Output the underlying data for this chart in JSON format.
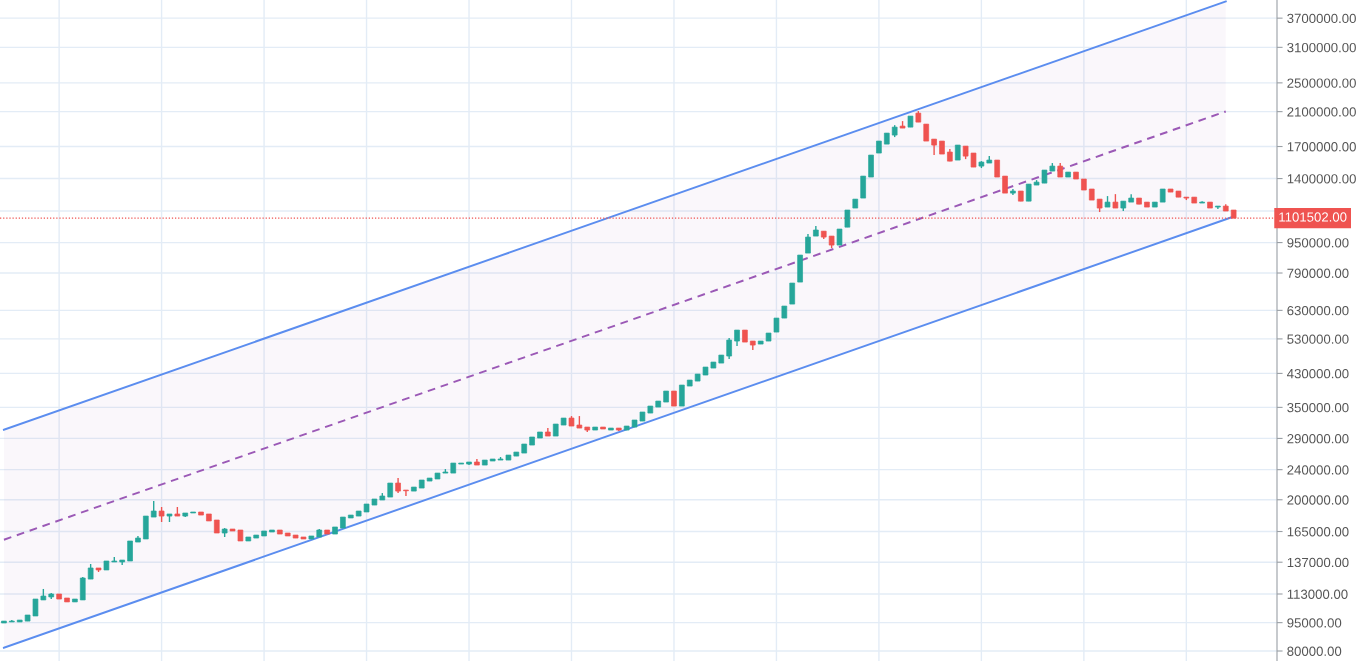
{
  "chart_data": {
    "type": "candlestick",
    "categories": [
      null,
      null,
      null,
      null,
      null,
      null,
      null,
      null,
      null,
      null,
      null,
      null,
      null,
      null,
      null,
      null,
      null,
      null,
      null,
      null,
      null,
      null,
      null,
      null,
      null,
      null,
      null,
      null,
      null,
      null,
      null,
      null,
      null,
      null,
      null,
      null,
      null,
      null,
      null,
      null,
      null,
      null,
      null,
      null,
      null,
      null,
      null,
      null,
      null,
      null,
      null,
      null,
      null,
      null,
      null,
      null,
      null,
      null,
      null,
      null,
      null,
      null,
      null,
      null,
      null,
      null,
      null,
      null,
      null,
      null,
      null,
      null,
      null,
      null,
      null,
      null,
      null,
      null,
      null,
      null,
      null,
      null,
      null,
      null,
      null,
      null,
      null,
      null,
      null,
      null,
      null,
      null,
      null,
      null,
      null,
      null,
      null,
      null,
      null,
      null,
      null,
      null,
      null,
      null,
      null,
      null,
      null,
      null,
      null,
      null,
      null,
      null,
      null,
      null,
      null,
      null,
      null,
      null,
      null,
      null,
      null,
      null,
      null,
      null,
      null,
      null,
      null,
      null,
      null,
      null,
      null,
      null,
      null,
      null,
      null,
      null,
      null,
      null,
      null,
      null,
      null,
      null,
      null,
      null,
      null,
      null,
      null,
      null,
      null,
      null,
      null,
      null,
      null,
      null,
      null,
      null,
      null
    ],
    "ohlc": [
      [
        94800,
        95900,
        94800,
        95900
      ],
      [
        95400,
        96500,
        95400,
        95900
      ],
      [
        95400,
        96500,
        95400,
        96500
      ],
      [
        95900,
        99500,
        95900,
        99500
      ],
      [
        98900,
        109600,
        98900,
        109600
      ],
      [
        109000,
        116500,
        109000,
        111600
      ],
      [
        111000,
        113700,
        109600,
        113000
      ],
      [
        113000,
        113000,
        109600,
        109600
      ],
      [
        110300,
        110300,
        107700,
        107700
      ],
      [
        107700,
        109600,
        107700,
        109600
      ],
      [
        109000,
        125300,
        109000,
        124500
      ],
      [
        123700,
        135500,
        123700,
        132300
      ],
      [
        132300,
        132300,
        129100,
        130700
      ],
      [
        130700,
        138000,
        130700,
        138000
      ],
      [
        137200,
        141400,
        137200,
        138000
      ],
      [
        137200,
        138800,
        134700,
        138800
      ],
      [
        138000,
        155800,
        138000,
        155800
      ],
      [
        154800,
        160600,
        154800,
        158600
      ],
      [
        157700,
        181200,
        157700,
        181200
      ],
      [
        180100,
        198400,
        180100,
        186800
      ],
      [
        186800,
        191400,
        174800,
        181200
      ],
      [
        181200,
        183500,
        174800,
        183500
      ],
      [
        183500,
        191400,
        181200,
        181200
      ],
      [
        181200,
        184600,
        180100,
        184600
      ],
      [
        184600,
        185700,
        184600,
        185700
      ],
      [
        185700,
        185700,
        182300,
        182300
      ],
      [
        183500,
        183500,
        175900,
        175900
      ],
      [
        176900,
        176900,
        163500,
        163500
      ],
      [
        163500,
        168500,
        159600,
        167500
      ],
      [
        167500,
        167500,
        165500,
        165500
      ],
      [
        166500,
        166500,
        155800,
        155800
      ],
      [
        155800,
        159600,
        155800,
        159600
      ],
      [
        158600,
        161500,
        158600,
        161500
      ],
      [
        160600,
        165500,
        160600,
        165500
      ],
      [
        164500,
        166500,
        164500,
        166500
      ],
      [
        166500,
        166500,
        162500,
        162500
      ],
      [
        163500,
        163500,
        160600,
        160600
      ],
      [
        161500,
        161500,
        158600,
        158600
      ],
      [
        159600,
        159600,
        157700,
        157700
      ],
      [
        157700,
        160600,
        157700,
        160600
      ],
      [
        159600,
        167500,
        159600,
        166500
      ],
      [
        166500,
        166500,
        162500,
        162500
      ],
      [
        162500,
        169600,
        162500,
        169600
      ],
      [
        168500,
        180100,
        168500,
        180100
      ],
      [
        179100,
        182300,
        179100,
        182300
      ],
      [
        181200,
        186800,
        181200,
        186800
      ],
      [
        185700,
        194900,
        185700,
        194900
      ],
      [
        193700,
        200900,
        193700,
        200900
      ],
      [
        199700,
        208300,
        199700,
        204600
      ],
      [
        203300,
        221300,
        203300,
        221300
      ],
      [
        221300,
        228100,
        208300,
        210800
      ],
      [
        212100,
        212100,
        204600,
        211200
      ],
      [
        210800,
        216000,
        210800,
        216000
      ],
      [
        214700,
        225400,
        214700,
        225400
      ],
      [
        224000,
        228100,
        224000,
        228100
      ],
      [
        226800,
        235100,
        226800,
        235100
      ],
      [
        235100,
        240900,
        235100,
        236600
      ],
      [
        235100,
        249800,
        235100,
        249800
      ],
      [
        248300,
        249800,
        248300,
        249800
      ],
      [
        248300,
        251400,
        246800,
        251400
      ],
      [
        251400,
        256000,
        246800,
        246800
      ],
      [
        246800,
        254400,
        246800,
        254400
      ],
      [
        252900,
        256000,
        252900,
        256000
      ],
      [
        254400,
        259100,
        254400,
        256000
      ],
      [
        254400,
        262200,
        254400,
        262200
      ],
      [
        260600,
        267000,
        260600,
        267000
      ],
      [
        265400,
        280300,
        265400,
        280300
      ],
      [
        278600,
        292500,
        278600,
        292500
      ],
      [
        290700,
        301500,
        290700,
        301500
      ],
      [
        301500,
        308800,
        294200,
        294200
      ],
      [
        294200,
        316400,
        294200,
        316400
      ],
      [
        314500,
        328100,
        314500,
        328100
      ],
      [
        328100,
        332100,
        312600,
        312600
      ],
      [
        314500,
        332100,
        308800,
        308800
      ],
      [
        310700,
        310700,
        301500,
        305100
      ],
      [
        305100,
        310700,
        305100,
        310700
      ],
      [
        310700,
        310700,
        307000,
        307000
      ],
      [
        305100,
        308800,
        305100,
        308800
      ],
      [
        308800,
        308800,
        303300,
        305100
      ],
      [
        305100,
        312600,
        305100,
        312600
      ],
      [
        310700,
        324200,
        310700,
        324200
      ],
      [
        322200,
        340300,
        322200,
        340300
      ],
      [
        338200,
        352800,
        338200,
        352800
      ],
      [
        350700,
        363700,
        350700,
        363700
      ],
      [
        361500,
        386400,
        361500,
        386400
      ],
      [
        386400,
        386400,
        352800,
        352800
      ],
      [
        352800,
        400700,
        352800,
        400700
      ],
      [
        398300,
        413000,
        398300,
        413000
      ],
      [
        410500,
        428300,
        410500,
        428300
      ],
      [
        425800,
        446900,
        425800,
        446900
      ],
      [
        444200,
        460600,
        444200,
        460600
      ],
      [
        457800,
        480500,
        457800,
        480500
      ],
      [
        477700,
        532700,
        469100,
        526300
      ],
      [
        523100,
        559100,
        507500,
        559100
      ],
      [
        559100,
        559100,
        519900,
        519900
      ],
      [
        523100,
        523100,
        495300,
        510600
      ],
      [
        513700,
        523100,
        513700,
        523100
      ],
      [
        523100,
        549100,
        523100,
        549100
      ],
      [
        552400,
        601300,
        552400,
        601300
      ],
      [
        601300,
        646600,
        601300,
        646600
      ],
      [
        654500,
        743300,
        654500,
        743300
      ],
      [
        747800,
        880700,
        747800,
        880700
      ],
      [
        891400,
        1000000,
        891400,
        982100
      ],
      [
        988100,
        1050000,
        988100,
        1025000
      ],
      [
        1018000,
        1018000,
        970300,
        982100
      ],
      [
        988100,
        988100,
        918800,
        935700
      ],
      [
        935700,
        1031000,
        935700,
        1031000
      ],
      [
        1043000,
        1157000,
        1043000,
        1157000
      ],
      [
        1171000,
        1236000,
        1171000,
        1236000
      ],
      [
        1244000,
        1421000,
        1244000,
        1421000
      ],
      [
        1413000,
        1614000,
        1413000,
        1614000
      ],
      [
        1634000,
        1757000,
        1634000,
        1757000
      ],
      [
        1725000,
        1844000,
        1725000,
        1844000
      ],
      [
        1822000,
        1935000,
        1800000,
        1912000
      ],
      [
        1924000,
        1983000,
        1901000,
        1901000
      ],
      [
        1912000,
        2044000,
        1912000,
        2044000
      ],
      [
        2081000,
        2107000,
        1971000,
        1971000
      ],
      [
        1947000,
        1947000,
        1757000,
        1757000
      ],
      [
        1778000,
        1778000,
        1614000,
        1715000
      ],
      [
        1757000,
        1757000,
        1624000,
        1624000
      ],
      [
        1644000,
        1674000,
        1556000,
        1556000
      ],
      [
        1566000,
        1715000,
        1566000,
        1715000
      ],
      [
        1704000,
        1704000,
        1575000,
        1604000
      ],
      [
        1634000,
        1634000,
        1501000,
        1501000
      ],
      [
        1510000,
        1556000,
        1492000,
        1547000
      ],
      [
        1538000,
        1604000,
        1538000,
        1566000
      ],
      [
        1566000,
        1566000,
        1413000,
        1413000
      ],
      [
        1421000,
        1421000,
        1282000,
        1282000
      ],
      [
        1282000,
        1314000,
        1267000,
        1298000
      ],
      [
        1298000,
        1298000,
        1221000,
        1221000
      ],
      [
        1221000,
        1354000,
        1221000,
        1354000
      ],
      [
        1346000,
        1387000,
        1346000,
        1370000
      ],
      [
        1362000,
        1474000,
        1362000,
        1474000
      ],
      [
        1465000,
        1538000,
        1465000,
        1510000
      ],
      [
        1510000,
        1538000,
        1413000,
        1413000
      ],
      [
        1413000,
        1456000,
        1413000,
        1456000
      ],
      [
        1456000,
        1456000,
        1396000,
        1396000
      ],
      [
        1396000,
        1396000,
        1306000,
        1306000
      ],
      [
        1314000,
        1314000,
        1229000,
        1229000
      ],
      [
        1236000,
        1236000,
        1143000,
        1171000
      ],
      [
        1178000,
        1259000,
        1178000,
        1214000
      ],
      [
        1214000,
        1274000,
        1171000,
        1171000
      ],
      [
        1171000,
        1221000,
        1150000,
        1221000
      ],
      [
        1214000,
        1274000,
        1214000,
        1244000
      ],
      [
        1244000,
        1244000,
        1199000,
        1199000
      ],
      [
        1214000,
        1214000,
        1178000,
        1178000
      ],
      [
        1178000,
        1214000,
        1178000,
        1214000
      ],
      [
        1214000,
        1314000,
        1214000,
        1314000
      ],
      [
        1314000,
        1314000,
        1290000,
        1290000
      ],
      [
        1298000,
        1298000,
        1251000,
        1251000
      ],
      [
        1251000,
        1251000,
        1229000,
        1244000
      ],
      [
        1251000,
        1251000,
        1207000,
        1207000
      ],
      [
        1207000,
        1221000,
        1207000,
        1214000
      ],
      [
        1214000,
        1214000,
        1171000,
        1171000
      ],
      [
        1178000,
        1185000,
        1164000,
        1185000
      ],
      [
        1185000,
        1199000,
        1150000,
        1150000
      ],
      [
        1157000,
        1157000,
        1101502,
        1101502
      ]
    ],
    "colors": [
      "#26a69a",
      "#26a69a",
      "#26a69a",
      "#26a69a",
      "#26a69a",
      "#26a69a",
      "#26a69a",
      "#ef5350",
      "#ef5350",
      "#26a69a",
      "#26a69a",
      "#26a69a",
      "#ef5350",
      "#26a69a",
      "#26a69a",
      "#26a69a",
      "#26a69a",
      "#26a69a",
      "#26a69a",
      "#26a69a",
      "#ef5350",
      "#26a69a",
      "#ef5350",
      "#26a69a",
      "#26a69a",
      "#ef5350",
      "#ef5350",
      "#ef5350",
      "#26a69a",
      "#ef5350",
      "#ef5350",
      "#26a69a",
      "#26a69a",
      "#26a69a",
      "#26a69a",
      "#ef5350",
      "#ef5350",
      "#ef5350",
      "#ef5350",
      "#26a69a",
      "#26a69a",
      "#ef5350",
      "#26a69a",
      "#26a69a",
      "#26a69a",
      "#26a69a",
      "#26a69a",
      "#26a69a",
      "#26a69a",
      "#26a69a",
      "#ef5350",
      "#ef5350",
      "#26a69a",
      "#26a69a",
      "#26a69a",
      "#26a69a",
      "#26a69a",
      "#26a69a",
      "#26a69a",
      "#26a69a",
      "#ef5350",
      "#26a69a",
      "#26a69a",
      "#26a69a",
      "#26a69a",
      "#26a69a",
      "#26a69a",
      "#26a69a",
      "#26a69a",
      "#ef5350",
      "#26a69a",
      "#26a69a",
      "#ef5350",
      "#ef5350",
      "#ef5350",
      "#26a69a",
      "#ef5350",
      "#26a69a",
      "#ef5350",
      "#26a69a",
      "#26a69a",
      "#26a69a",
      "#26a69a",
      "#26a69a",
      "#26a69a",
      "#ef5350",
      "#26a69a",
      "#26a69a",
      "#26a69a",
      "#26a69a",
      "#26a69a",
      "#26a69a",
      "#26a69a",
      "#26a69a",
      "#ef5350",
      "#ef5350",
      "#26a69a",
      "#26a69a",
      "#26a69a",
      "#26a69a",
      "#26a69a",
      "#26a69a",
      "#26a69a",
      "#26a69a",
      "#ef5350",
      "#ef5350",
      "#26a69a",
      "#26a69a",
      "#26a69a",
      "#26a69a",
      "#26a69a",
      "#26a69a",
      "#26a69a",
      "#26a69a",
      "#ef5350",
      "#26a69a",
      "#ef5350",
      "#ef5350",
      "#ef5350",
      "#ef5350",
      "#ef5350",
      "#26a69a",
      "#ef5350",
      "#ef5350",
      "#26a69a",
      "#26a69a",
      "#ef5350",
      "#ef5350",
      "#26a69a",
      "#ef5350",
      "#26a69a",
      "#26a69a",
      "#26a69a",
      "#26a69a",
      "#ef5350",
      "#26a69a",
      "#ef5350",
      "#ef5350",
      "#ef5350",
      "#ef5350",
      "#26a69a",
      "#ef5350",
      "#26a69a",
      "#26a69a",
      "#ef5350",
      "#ef5350",
      "#26a69a",
      "#26a69a",
      "#ef5350",
      "#ef5350",
      "#ef5350",
      "#ef5350",
      "#26a69a",
      "#ef5350",
      "#26a69a",
      "#ef5350",
      "#ef5350"
    ],
    "series": [
      {
        "type": "line",
        "values": [
          305600,
          null,
          null,
          null,
          null,
          null,
          null,
          null,
          null,
          null,
          null,
          null,
          null,
          null,
          null,
          null,
          null,
          null,
          null,
          null,
          null,
          null,
          null,
          null,
          null,
          null,
          null,
          null,
          null,
          null,
          null,
          null,
          null,
          null,
          null,
          null,
          null,
          null,
          null,
          null,
          null,
          null,
          null,
          null,
          null,
          null,
          null,
          null,
          null,
          null,
          null,
          null,
          null,
          null,
          null,
          null,
          null,
          null,
          null,
          null,
          null,
          null,
          null,
          null,
          null,
          null,
          null,
          null,
          null,
          null,
          null,
          null,
          null,
          null,
          null,
          null,
          null,
          null,
          null,
          null,
          null,
          null,
          null,
          null,
          null,
          null,
          null,
          null,
          null,
          null,
          null,
          null,
          null,
          null,
          null,
          null,
          null,
          null,
          null,
          null,
          null,
          null,
          null,
          null,
          null,
          null,
          null,
          null,
          null,
          null,
          null,
          null,
          null,
          null,
          null,
          null,
          null,
          null,
          null,
          null,
          null,
          null,
          null,
          null,
          null,
          null,
          null,
          null,
          null,
          null,
          null,
          null,
          null,
          null,
          null,
          null,
          null,
          null,
          null,
          null,
          null,
          null,
          null,
          null,
          null,
          null,
          null,
          null,
          null,
          null,
          null,
          null,
          null,
          null,
          null,
          4094000,
          null
        ],
        "color": "#5b8def",
        "line_style": "solid"
      },
      {
        "type": "line",
        "values": [
          157000,
          null,
          null,
          null,
          null,
          null,
          null,
          null,
          null,
          null,
          null,
          null,
          null,
          null,
          null,
          null,
          null,
          null,
          null,
          null,
          null,
          null,
          null,
          null,
          null,
          null,
          null,
          null,
          null,
          null,
          null,
          null,
          null,
          null,
          null,
          null,
          null,
          null,
          null,
          null,
          null,
          null,
          null,
          null,
          null,
          null,
          null,
          null,
          null,
          null,
          null,
          null,
          null,
          null,
          null,
          null,
          null,
          null,
          null,
          null,
          null,
          null,
          null,
          null,
          null,
          null,
          null,
          null,
          null,
          null,
          null,
          null,
          null,
          null,
          null,
          null,
          null,
          null,
          null,
          null,
          null,
          null,
          null,
          null,
          null,
          null,
          null,
          null,
          null,
          null,
          null,
          null,
          null,
          null,
          null,
          null,
          null,
          null,
          null,
          null,
          null,
          null,
          null,
          null,
          null,
          null,
          null,
          null,
          null,
          null,
          null,
          null,
          null,
          null,
          null,
          null,
          null,
          null,
          null,
          null,
          null,
          null,
          null,
          null,
          null,
          null,
          null,
          null,
          null,
          null,
          null,
          null,
          null,
          null,
          null,
          null,
          null,
          null,
          null,
          null,
          null,
          null,
          null,
          null,
          null,
          null,
          null,
          null,
          null,
          null,
          null,
          null,
          null,
          null,
          null,
          2102000,
          null
        ],
        "lower": [
          81600,
          null,
          null,
          null,
          null,
          null,
          null,
          null,
          null,
          null,
          null,
          null,
          null,
          null,
          null,
          null,
          null,
          null,
          null,
          null,
          null,
          null,
          null,
          null,
          null,
          null,
          null,
          null,
          null,
          null,
          null,
          null,
          null,
          null,
          null,
          null,
          null,
          null,
          null,
          null,
          null,
          null,
          null,
          null,
          null,
          null,
          null,
          null,
          null,
          null,
          null,
          null,
          null,
          null,
          null,
          null,
          null,
          null,
          null,
          null,
          null,
          null,
          null,
          null,
          null,
          null,
          null,
          null,
          null,
          null,
          null,
          null,
          null,
          null,
          null,
          null,
          null,
          null,
          null,
          null,
          null,
          null,
          null,
          null,
          null,
          null,
          null,
          null,
          null,
          null,
          null,
          null,
          null,
          null,
          null,
          null,
          null,
          null,
          null,
          null,
          null,
          null,
          null,
          null,
          null,
          null,
          null,
          null,
          null,
          null,
          null,
          null,
          null,
          null,
          null,
          null,
          null,
          null,
          null,
          null,
          null,
          null,
          null,
          null,
          null,
          null,
          null,
          null,
          null,
          null,
          null,
          null,
          null,
          null,
          null,
          null,
          null,
          null,
          null,
          null,
          null,
          null,
          null,
          null,
          null,
          null,
          null,
          null,
          null,
          null,
          null,
          null,
          null,
          null,
          null,
          1093000,
          null
        ],
        "upper": [
          305600,
          null,
          null,
          null,
          null,
          null,
          null,
          null,
          null,
          null,
          null,
          null,
          null,
          null,
          null,
          null,
          null,
          null,
          null,
          null,
          null,
          null,
          null,
          null,
          null,
          null,
          null,
          null,
          null,
          null,
          null,
          null,
          null,
          null,
          null,
          null,
          null,
          null,
          null,
          null,
          null,
          null,
          null,
          null,
          null,
          null,
          null,
          null,
          null,
          null,
          null,
          null,
          null,
          null,
          null,
          null,
          null,
          null,
          null,
          null,
          null,
          null,
          null,
          null,
          null,
          null,
          null,
          null,
          null,
          null,
          null,
          null,
          null,
          null,
          null,
          null,
          null,
          null,
          null,
          null,
          null,
          null,
          null,
          null,
          null,
          null,
          null,
          null,
          null,
          null,
          null,
          null,
          null,
          null,
          null,
          null,
          null,
          null,
          null,
          null,
          null,
          null,
          null,
          null,
          null,
          null,
          null,
          null,
          null,
          null,
          null,
          null,
          null,
          null,
          null,
          null,
          null,
          null,
          null,
          null,
          null,
          null,
          null,
          null,
          null,
          null,
          null,
          null,
          null,
          null,
          null,
          null,
          null,
          null,
          null,
          null,
          null,
          null,
          null,
          null,
          null,
          null,
          null,
          null,
          null,
          null,
          null,
          null,
          null,
          null,
          null,
          null,
          null,
          null,
          null,
          4094000,
          null
        ],
        "color": "#9b59b6",
        "line_style": "dashed"
      },
      {
        "type": "line",
        "values": [
          81600,
          null,
          null,
          null,
          null,
          null,
          null,
          null,
          null,
          null,
          null,
          null,
          null,
          null,
          null,
          null,
          null,
          null,
          null,
          null,
          null,
          null,
          null,
          null,
          null,
          null,
          null,
          null,
          null,
          null,
          null,
          null,
          null,
          null,
          null,
          null,
          null,
          null,
          null,
          null,
          null,
          null,
          null,
          null,
          null,
          null,
          null,
          null,
          null,
          null,
          null,
          null,
          null,
          null,
          null,
          null,
          null,
          null,
          null,
          null,
          null,
          null,
          null,
          null,
          null,
          null,
          null,
          null,
          null,
          null,
          null,
          null,
          null,
          null,
          null,
          null,
          null,
          null,
          null,
          null,
          null,
          null,
          null,
          null,
          null,
          null,
          null,
          null,
          null,
          null,
          null,
          null,
          null,
          null,
          null,
          null,
          null,
          null,
          null,
          null,
          null,
          null,
          null,
          null,
          null,
          null,
          null,
          null,
          null,
          null,
          null,
          null,
          null,
          null,
          null,
          null,
          null,
          null,
          null,
          null,
          null,
          null,
          null,
          null,
          null,
          null,
          null,
          null,
          null,
          null,
          null,
          null,
          null,
          null,
          null,
          null,
          null,
          null,
          null,
          null,
          null,
          null,
          null,
          null,
          null,
          null,
          null,
          null,
          null,
          null,
          null,
          null,
          null,
          null,
          null,
          null,
          1112000
        ],
        "color": "#5b8def",
        "line_style": "solid"
      }
    ],
    "ylim": [
      75300,
      4130000
    ],
    "yticks": [
      {
        "value": 80000,
        "label": "80000.00"
      },
      {
        "value": 95000,
        "label": "95000.00"
      },
      {
        "value": 113000,
        "label": "113000.00"
      },
      {
        "value": 137000,
        "label": "137000.00"
      },
      {
        "value": 165000,
        "label": "165000.00"
      },
      {
        "value": 200000,
        "label": "200000.00"
      },
      {
        "value": 240000,
        "label": "240000.00"
      },
      {
        "value": 290000,
        "label": "290000.00"
      },
      {
        "value": 350000,
        "label": "350000.00"
      },
      {
        "value": 430000,
        "label": "430000.00"
      },
      {
        "value": 530000,
        "label": "530000.00"
      },
      {
        "value": 630000,
        "label": "630000.00"
      },
      {
        "value": 790000,
        "label": "790000.00"
      },
      {
        "value": 950000,
        "label": "950000.00"
      },
      {
        "value": 1150000,
        "label": null
      },
      {
        "value": 1400000,
        "label": "1400000.00"
      },
      {
        "value": 1700000,
        "label": "1700000.00"
      },
      {
        "value": 2100000,
        "label": "2100000.00"
      },
      {
        "value": 2500000,
        "label": "2500000.00"
      },
      {
        "value": 3100000,
        "label": "3100000.00"
      },
      {
        "value": 3700000,
        "label": "3700000.00"
      }
    ],
    "log": "y",
    "grid": true,
    "tick_labels": "y",
    "ref_lines": [
      {
        "axis": "y",
        "value": 1101502,
        "label": "1101502.00",
        "color": "#ef5350",
        "line_style": "dotted"
      }
    ]
  }
}
